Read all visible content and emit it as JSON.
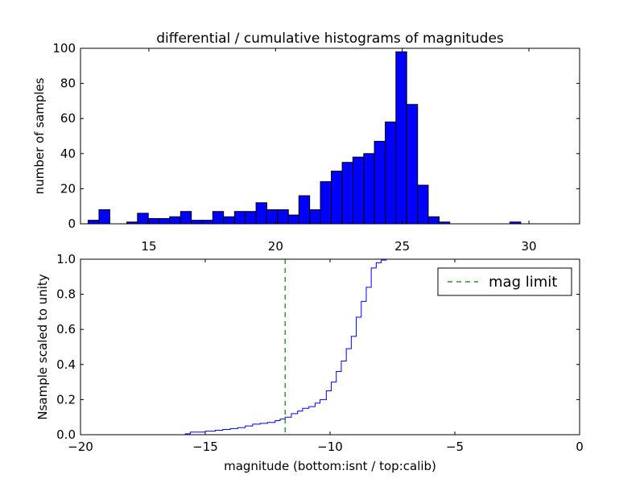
{
  "chart_data": [
    {
      "type": "bar",
      "title": "differential / cumulative histograms of magnitudes",
      "xlabel": "",
      "ylabel": "number of samples",
      "xlim": [
        12.3,
        32.0
      ],
      "ylim": [
        0,
        100
      ],
      "xticks": [
        15,
        20,
        25,
        30
      ],
      "yticks": [
        0,
        20,
        40,
        60,
        80,
        100
      ],
      "tick_side_x": "top",
      "grid": false,
      "bin_width": 0.425,
      "bars": [
        {
          "x0": 12.6,
          "value": 2
        },
        {
          "x0": 13.03,
          "value": 8
        },
        {
          "x0": 14.13,
          "value": 1
        },
        {
          "x0": 14.55,
          "value": 6
        },
        {
          "x0": 14.97,
          "value": 3
        },
        {
          "x0": 15.4,
          "value": 3
        },
        {
          "x0": 15.82,
          "value": 4
        },
        {
          "x0": 16.25,
          "value": 7
        },
        {
          "x0": 16.68,
          "value": 2
        },
        {
          "x0": 17.1,
          "value": 2
        },
        {
          "x0": 17.52,
          "value": 7
        },
        {
          "x0": 17.95,
          "value": 4
        },
        {
          "x0": 18.38,
          "value": 7
        },
        {
          "x0": 18.8,
          "value": 7
        },
        {
          "x0": 19.23,
          "value": 12
        },
        {
          "x0": 19.65,
          "value": 8
        },
        {
          "x0": 20.08,
          "value": 8
        },
        {
          "x0": 20.5,
          "value": 5
        },
        {
          "x0": 20.92,
          "value": 16
        },
        {
          "x0": 21.35,
          "value": 8
        },
        {
          "x0": 21.77,
          "value": 24
        },
        {
          "x0": 22.2,
          "value": 30
        },
        {
          "x0": 22.63,
          "value": 35
        },
        {
          "x0": 23.05,
          "value": 38
        },
        {
          "x0": 23.48,
          "value": 40
        },
        {
          "x0": 23.9,
          "value": 47
        },
        {
          "x0": 24.33,
          "value": 58
        },
        {
          "x0": 24.75,
          "value": 98
        },
        {
          "x0": 25.18,
          "value": 68
        },
        {
          "x0": 25.6,
          "value": 22
        },
        {
          "x0": 26.03,
          "value": 4
        },
        {
          "x0": 26.45,
          "value": 1
        },
        {
          "x0": 29.25,
          "value": 1
        }
      ]
    },
    {
      "type": "line",
      "style": "step",
      "xlabel": "magnitude (bottom:isnt / top:calib)",
      "ylabel": "Nsample scaled to unity",
      "xlim": [
        -20,
        0
      ],
      "ylim": [
        0.0,
        1.0
      ],
      "xticks": [
        -20,
        -15,
        -10,
        -5,
        0
      ],
      "xtick_labels": [
        "−20",
        "−15",
        "−10",
        "−5",
        "0"
      ],
      "yticks": [
        0.0,
        0.2,
        0.4,
        0.6,
        0.8,
        1.0
      ],
      "ytick_labels": [
        "0.0",
        "0.2",
        "0.4",
        "0.6",
        "0.8",
        "1.0"
      ],
      "grid": false,
      "legend_position": "top-right",
      "series": [
        {
          "name": "",
          "color": "#0000ff",
          "points": [
            [
              -20.0,
              0.0
            ],
            [
              -15.8,
              0.0
            ],
            [
              -15.8,
              0.005
            ],
            [
              -15.6,
              0.005
            ],
            [
              -15.6,
              0.015
            ],
            [
              -15.0,
              0.015
            ],
            [
              -15.0,
              0.02
            ],
            [
              -14.6,
              0.02
            ],
            [
              -14.6,
              0.025
            ],
            [
              -14.3,
              0.025
            ],
            [
              -14.3,
              0.03
            ],
            [
              -14.0,
              0.03
            ],
            [
              -14.0,
              0.035
            ],
            [
              -13.7,
              0.035
            ],
            [
              -13.7,
              0.04
            ],
            [
              -13.4,
              0.04
            ],
            [
              -13.4,
              0.05
            ],
            [
              -13.1,
              0.05
            ],
            [
              -13.1,
              0.06
            ],
            [
              -12.8,
              0.06
            ],
            [
              -12.8,
              0.065
            ],
            [
              -12.5,
              0.065
            ],
            [
              -12.5,
              0.07
            ],
            [
              -12.2,
              0.07
            ],
            [
              -12.2,
              0.08
            ],
            [
              -12.0,
              0.08
            ],
            [
              -12.0,
              0.09
            ],
            [
              -11.8,
              0.09
            ],
            [
              -11.8,
              0.1
            ],
            [
              -11.55,
              0.1
            ],
            [
              -11.55,
              0.12
            ],
            [
              -11.3,
              0.12
            ],
            [
              -11.3,
              0.135
            ],
            [
              -11.1,
              0.135
            ],
            [
              -11.1,
              0.15
            ],
            [
              -10.85,
              0.15
            ],
            [
              -10.85,
              0.16
            ],
            [
              -10.6,
              0.16
            ],
            [
              -10.6,
              0.18
            ],
            [
              -10.4,
              0.18
            ],
            [
              -10.4,
              0.2
            ],
            [
              -10.15,
              0.2
            ],
            [
              -10.15,
              0.25
            ],
            [
              -9.95,
              0.25
            ],
            [
              -9.95,
              0.3
            ],
            [
              -9.75,
              0.3
            ],
            [
              -9.75,
              0.36
            ],
            [
              -9.55,
              0.36
            ],
            [
              -9.55,
              0.42
            ],
            [
              -9.35,
              0.42
            ],
            [
              -9.35,
              0.49
            ],
            [
              -9.15,
              0.49
            ],
            [
              -9.15,
              0.56
            ],
            [
              -8.95,
              0.56
            ],
            [
              -8.95,
              0.67
            ],
            [
              -8.75,
              0.67
            ],
            [
              -8.75,
              0.76
            ],
            [
              -8.55,
              0.76
            ],
            [
              -8.55,
              0.84
            ],
            [
              -8.35,
              0.84
            ],
            [
              -8.35,
              0.95
            ],
            [
              -8.15,
              0.95
            ],
            [
              -8.15,
              0.98
            ],
            [
              -7.95,
              0.98
            ],
            [
              -7.95,
              0.995
            ],
            [
              -7.75,
              0.995
            ],
            [
              -7.75,
              1.0
            ],
            [
              0.0,
              1.0
            ]
          ]
        },
        {
          "name": "mag limit",
          "color": "#008000",
          "dash": true,
          "vertical_line_x": -11.8
        }
      ]
    }
  ]
}
